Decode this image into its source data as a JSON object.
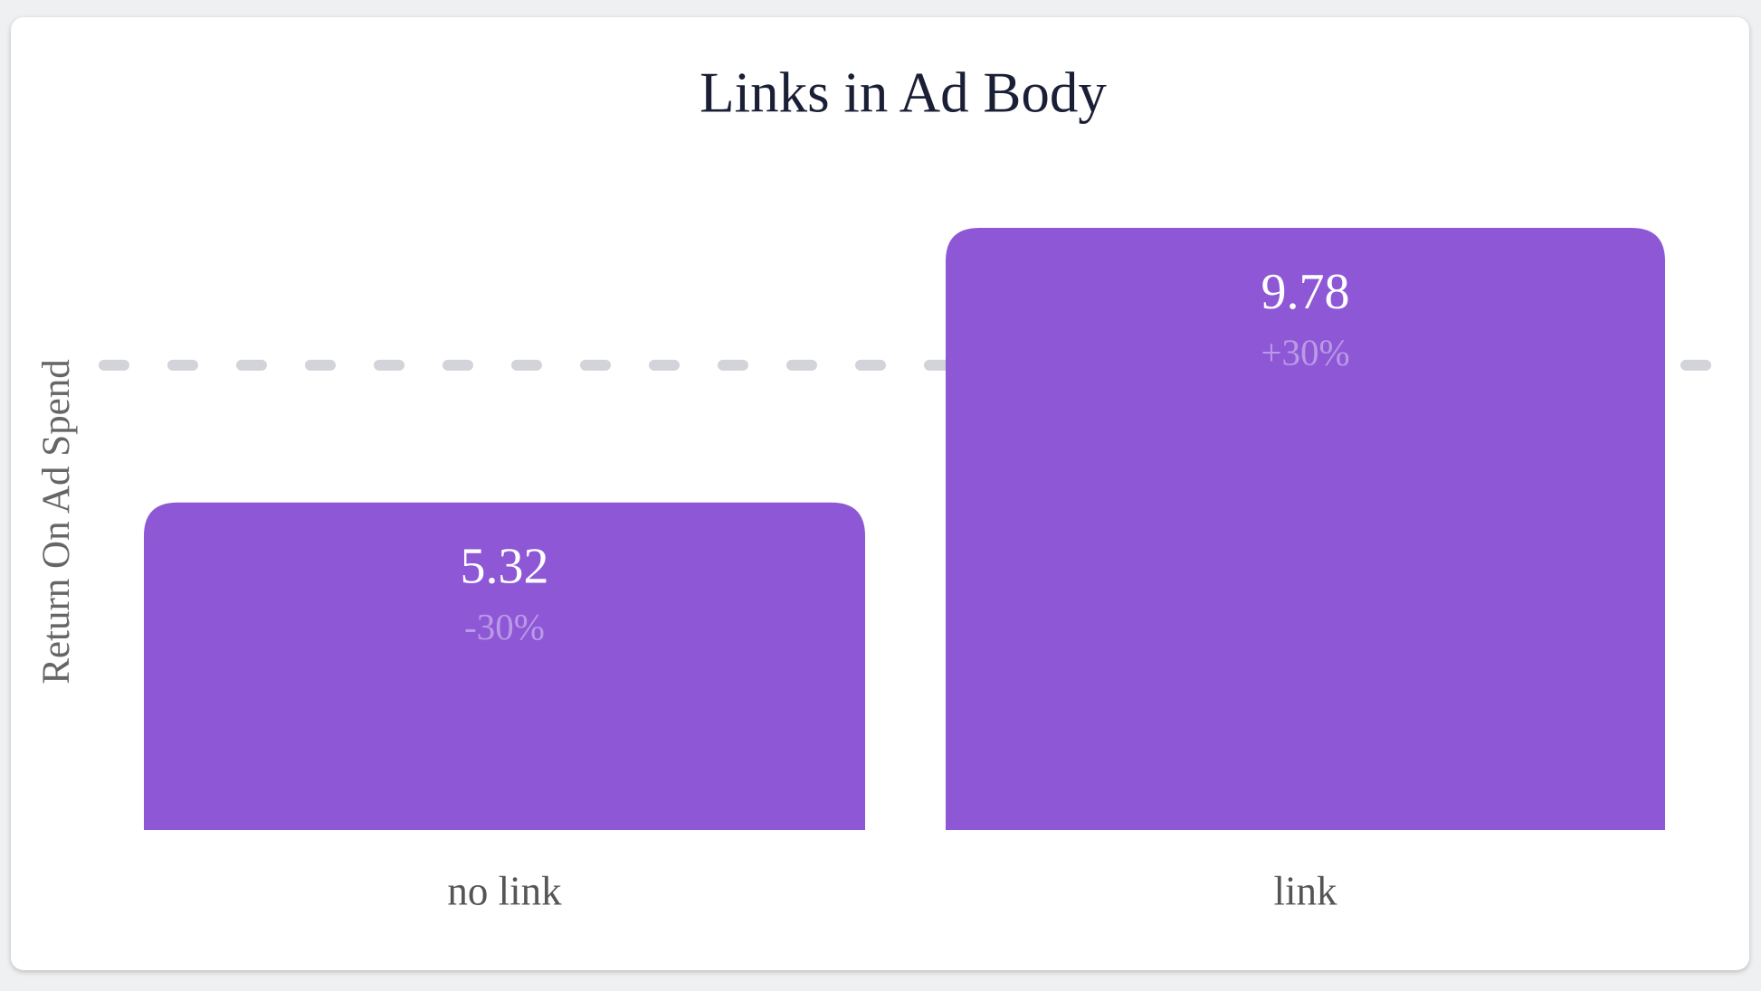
{
  "chart_data": {
    "type": "bar",
    "title": "Links in Ad Body",
    "y_label": "Return On Ad Spend",
    "categories": [
      "no link",
      "link"
    ],
    "values": [
      5.32,
      9.78
    ],
    "value_labels": [
      "5.32",
      "9.78"
    ],
    "change_labels": [
      "-30%",
      "+30%"
    ],
    "color": "#8e57d6",
    "reference_line": 7.55,
    "ylim": [
      0,
      9.78
    ]
  }
}
